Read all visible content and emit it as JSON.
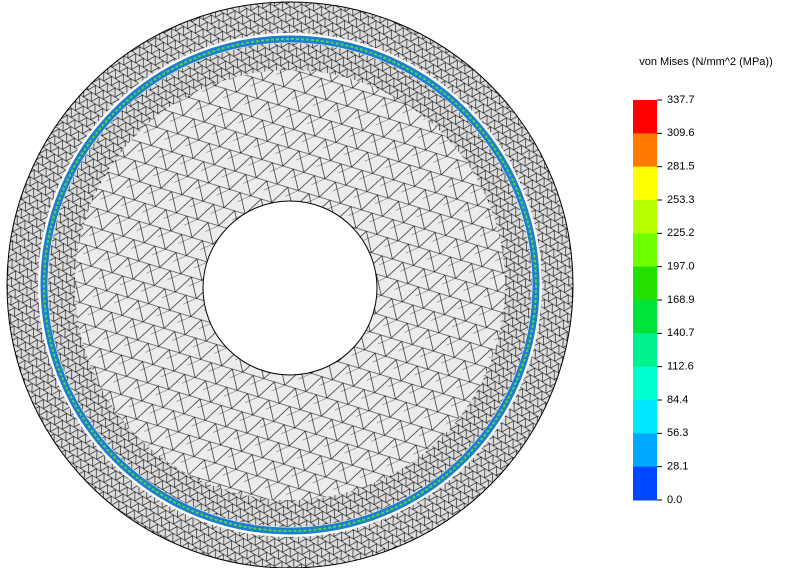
{
  "legend": {
    "title": "von Mises (N/mm^2 (MPa))",
    "labels": [
      "337.7",
      "309.6",
      "281.5",
      "253.3",
      "225.2",
      "197.0",
      "168.9",
      "140.7",
      "112.6",
      "84.4",
      "56.3",
      "28.1",
      "0.0"
    ]
  }
}
